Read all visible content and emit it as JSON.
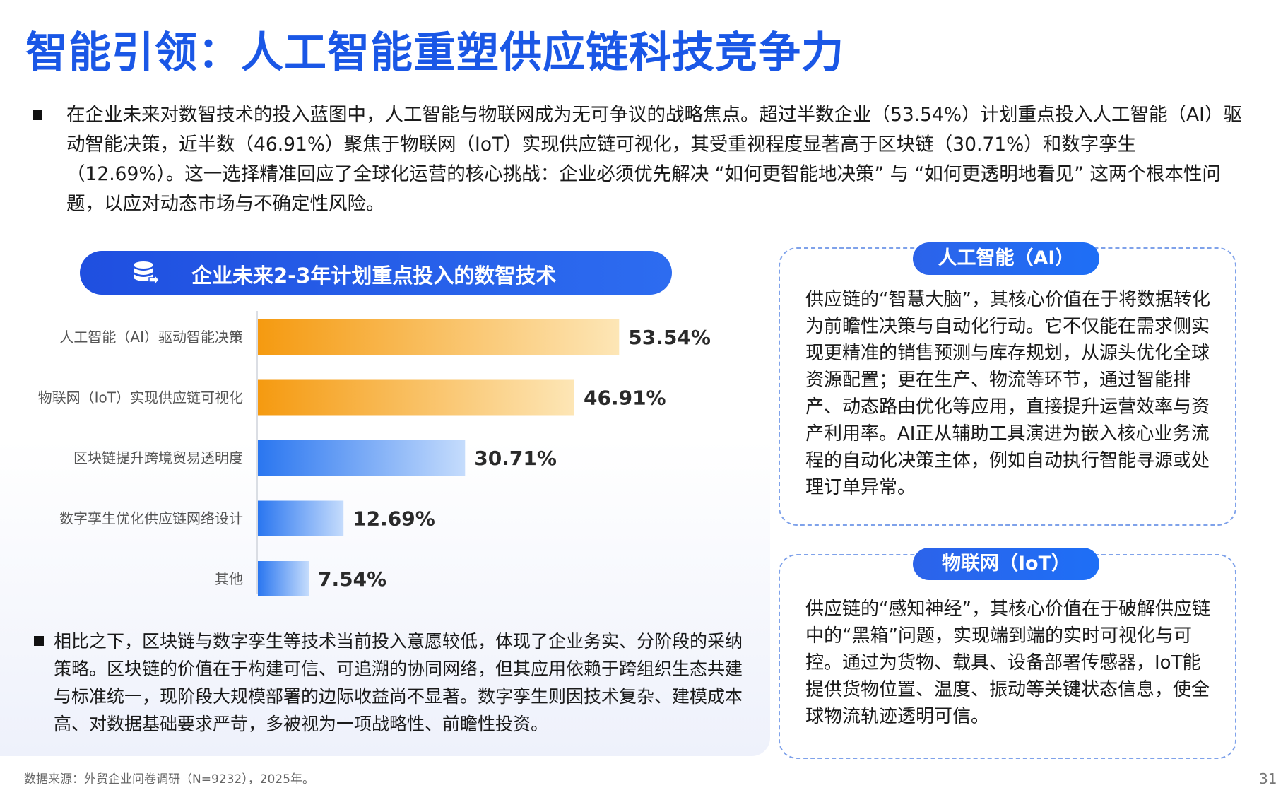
{
  "title": "智能引领：人工智能重塑供应链科技竞争力",
  "intro": "在企业未来对数智技术的投入蓝图中，人工智能与物联网成为无可争议的战略焦点。超过半数企业（53.54%）计划重点投入人工智能（AI）驱动智能决策，近半数（46.91%）聚焦于物联网（IoT）实现供应链可视化，其受重视程度显著高于区块链（30.71%）和数字孪生（12.69%）。这一选择精准回应了全球化运营的核心挑战：企业必须优先解决 “如何更智能地决策” 与 “如何更透明地看见” 这两个根本性问题，以应对动态市场与不确定性风险。",
  "chart_header": {
    "icon": "database-icon",
    "title": "企业未来2-3年计划重点投入的数智技术"
  },
  "chart_data": {
    "type": "bar",
    "orientation": "horizontal",
    "title": "企业未来2-3年计划重点投入的数智技术",
    "categories": [
      "人工智能（AI）驱动智能决策",
      "物联网（IoT）实现供应链可视化",
      "区块链提升跨境贸易透明度",
      "数字孪生优化供应链网络设计",
      "其他"
    ],
    "values": [
      53.54,
      46.91,
      30.71,
      12.69,
      7.54
    ],
    "value_labels": [
      "53.54%",
      "46.91%",
      "30.71%",
      "12.69%",
      "7.54%"
    ],
    "unit": "%",
    "xlim": [
      0,
      60
    ],
    "bar_colors": [
      {
        "from": "#f59a10",
        "to": "#fde6b6"
      },
      {
        "from": "#f59a10",
        "to": "#fde6b6"
      },
      {
        "from": "#2a76f0",
        "to": "#c5dcfc"
      },
      {
        "from": "#2a76f0",
        "to": "#c5dcfc"
      },
      {
        "from": "#2a76f0",
        "to": "#c5dcfc"
      }
    ]
  },
  "bottom_text": "相比之下，区块链与数字孪生等技术当前投入意愿较低，体现了企业务实、分阶段的采纳策略。区块链的价值在于构建可信、可追溯的协同网络，但其应用依赖于跨组织生态共建与标准统一，现阶段大规模部署的边际收益尚不显著。数字孪生则因技术复杂、建模成本高、对数据基础要求严苛，多被视为一项战略性、前瞻性投资。",
  "cards": [
    {
      "title": "人工智能（AI）",
      "text": "供应链的“智慧大脑”，其核心价值在于将数据转化为前瞻性决策与自动化行动。它不仅能在需求侧实现更精准的销售预测与库存规划，从源头优化全球资源配置；更在生产、物流等环节，通过智能排产、动态路由优化等应用，直接提升运营效率与资产利用率。AI正从辅助工具演进为嵌入核心业务流程的自动化决策主体，例如自动执行智能寻源或处理订单异常。"
    },
    {
      "title": "物联网（IoT）",
      "text": "供应链的“感知神经”，其核心价值在于破解供应链中的“黑箱”问题，实现端到端的实时可视化与可控。通过为货物、载具、设备部署传感器，IoT能提供货物位置、温度、振动等关键状态信息，使全球物流轨迹透明可信。"
    }
  ],
  "source": "数据来源：外贸企业问卷调研（N=9232），2025年。",
  "page_number": "31",
  "colors": {
    "accent": "#1a57e6",
    "card_border": "#7fa2ea",
    "orange_bar": "#f59a10",
    "blue_bar": "#2a76f0"
  }
}
